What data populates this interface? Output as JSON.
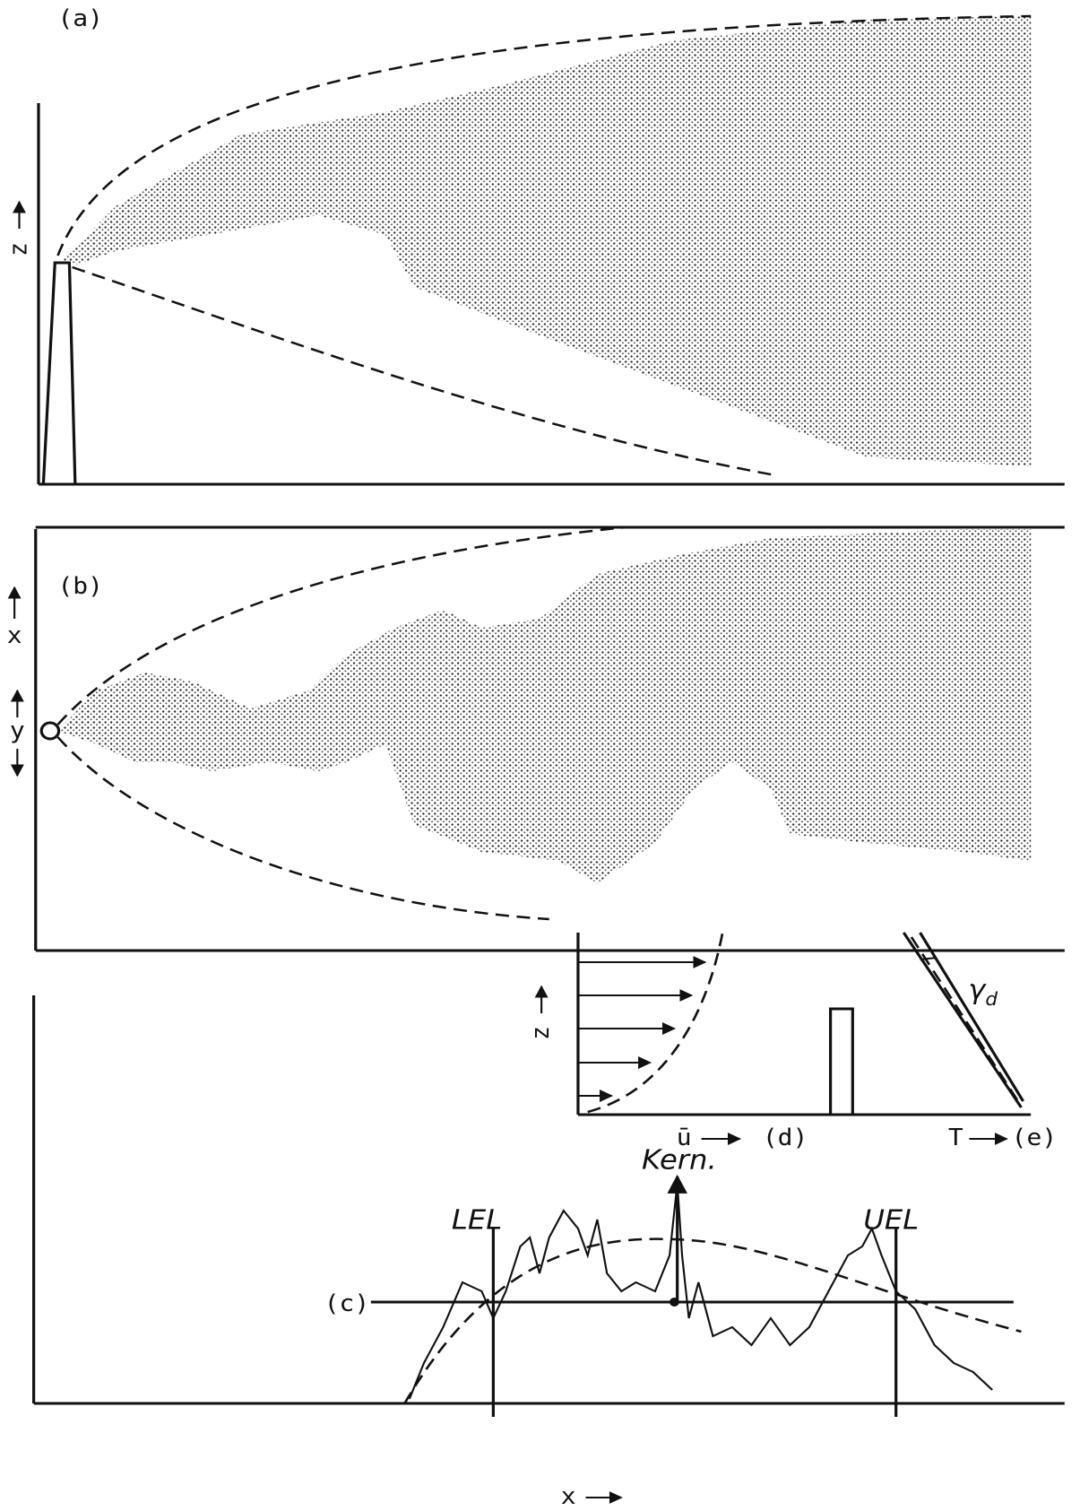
{
  "panels": {
    "a": {
      "label": "(a)",
      "axis": "z"
    },
    "b": {
      "label": "(b)",
      "axis": "y"
    },
    "c": {
      "label": "(c)",
      "y_axis": "x",
      "x_axis": "x",
      "lower_limit": "LEL",
      "upper_limit": "UEL",
      "core": "Kern."
    },
    "d": {
      "label": "(d)",
      "axis": "z",
      "wind": "ū"
    },
    "e": {
      "label": "(e)",
      "axis": "T",
      "lapse_rate": "γ",
      "lapse_rate_subscript": "d"
    }
  }
}
